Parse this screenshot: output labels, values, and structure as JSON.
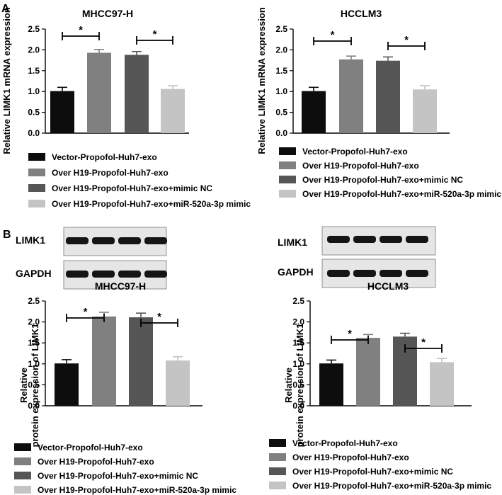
{
  "panel_labels": {
    "a": "A",
    "b": "B"
  },
  "colors": {
    "c0": "#0d0d0d",
    "c1": "#808080",
    "c2": "#565656",
    "c3": "#c4c4c4"
  },
  "categories": [
    "Vector-Propofol-Huh7-exo",
    "Over H19-Propofol-Huh7-exo",
    "Over H19-Propofol-Huh7-exo+mimic NC",
    "Over H19-Propofol-Huh7-exo+miR-520a-3p mimic"
  ],
  "significance_marker": "*",
  "blots": {
    "row_labels": [
      "LIMK1",
      "GAPDH"
    ]
  },
  "chart_data": [
    {
      "type": "bar",
      "title": "MHCC97-H",
      "ylabel": "Relative LIMK1 mRNA expression",
      "ylim": [
        0,
        2.5
      ],
      "yticks": [
        "0.0",
        "0.5",
        "1.0",
        "1.5",
        "2.0",
        "2.5"
      ],
      "values": [
        1.01,
        1.93,
        1.88,
        1.06
      ],
      "errors": [
        0.09,
        0.08,
        0.08,
        0.08
      ]
    },
    {
      "type": "bar",
      "title": "HCCLM3",
      "ylabel": "Relative LIMK1 mRNA expression",
      "ylim": [
        0,
        2.5
      ],
      "yticks": [
        "0.0",
        "0.5",
        "1.0",
        "1.5",
        "2.0",
        "2.5"
      ],
      "values": [
        1.01,
        1.77,
        1.74,
        1.05
      ],
      "errors": [
        0.09,
        0.08,
        0.09,
        0.09
      ]
    },
    {
      "type": "bar",
      "title": "MHCC97-H",
      "ylabel": "Relative  protein expression of LIMK1",
      "ylim": [
        0,
        2.5
      ],
      "yticks": [
        "0.0",
        "0.5",
        "1.0",
        "1.5",
        "2.0",
        "2.5"
      ],
      "values": [
        1.01,
        2.13,
        2.11,
        1.08
      ],
      "errors": [
        0.09,
        0.1,
        0.1,
        0.09
      ]
    },
    {
      "type": "bar",
      "title": "HCCLM3",
      "ylabel": "Relative  protein expression of LIMK1",
      "ylim": [
        0,
        2.5
      ],
      "yticks": [
        "0.0",
        "0.5",
        "1.0",
        "1.5",
        "2.0",
        "2.5"
      ],
      "values": [
        1.01,
        1.62,
        1.65,
        1.04
      ],
      "errors": [
        0.08,
        0.08,
        0.08,
        0.09
      ]
    }
  ]
}
